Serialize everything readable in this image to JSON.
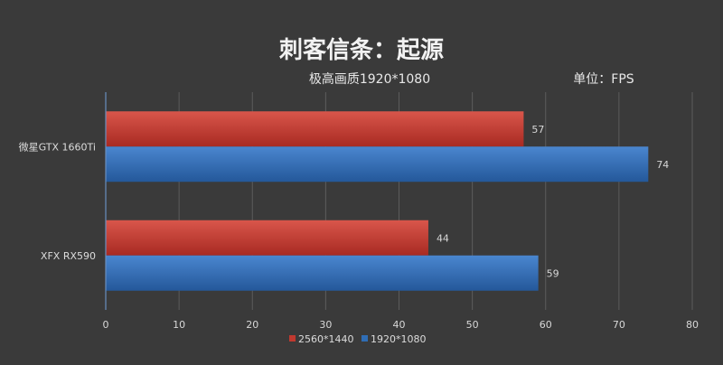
{
  "chart_data": {
    "type": "bar",
    "orientation": "horizontal",
    "title": "刺客信条：起源",
    "subtitle": "极高画质1920*1080",
    "unit_label": "单位：FPS",
    "categories": [
      "微星GTX 1660Ti",
      "XFX RX590"
    ],
    "series": [
      {
        "name": "2560*1440",
        "values": [
          57,
          44
        ],
        "color": "#c0392f"
      },
      {
        "name": "1920*1080",
        "values": [
          74,
          59
        ],
        "color": "#2f6db5"
      }
    ],
    "xlim": [
      0,
      80
    ],
    "xticks": [
      0,
      10,
      20,
      30,
      40,
      50,
      60,
      70,
      80
    ],
    "grid": true,
    "legend_position": "bottom"
  }
}
